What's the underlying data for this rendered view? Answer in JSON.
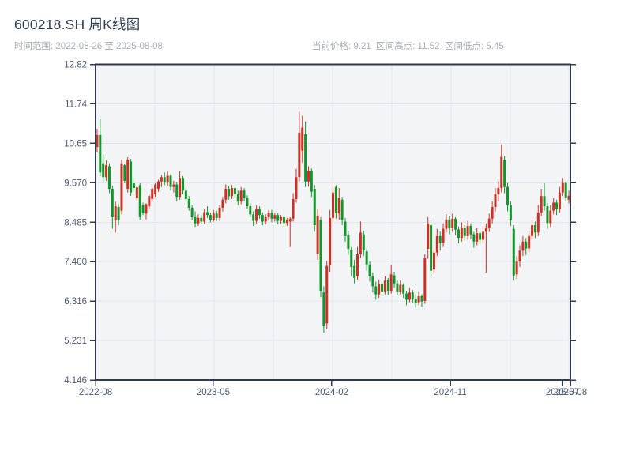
{
  "header": {
    "title": "600218.SH 周K线图",
    "subtitle_left": "时间范围: 2022-08-26 至 2025-08-08",
    "subtitle_right": "当前价格: 9.21  区间高点: 11.52  区间低点: 5.45"
  },
  "chart_data": {
    "type": "candlestick",
    "symbol": "600218.SH",
    "period": "weekly",
    "title": "600218.SH 周K线图",
    "date_start": "2022-08-26",
    "date_end": "2025-08-08",
    "current_price": 9.21,
    "range_high": 11.52,
    "range_low": 5.45,
    "ylim": [
      4.146,
      12.82
    ],
    "grid": true,
    "colors": {
      "up": "#cc3126",
      "down": "#12962a",
      "axis": "#2f3b4d",
      "grid": "#e5e6ea",
      "plot_bg": "#f3f4f6",
      "label": "#4b5870"
    },
    "y_ticks": [
      {
        "value": 12.82,
        "label": "12.82"
      },
      {
        "value": 11.736,
        "label": "11.74"
      },
      {
        "value": 10.651,
        "label": "10.65"
      },
      {
        "value": 9.567,
        "label": "9.570"
      },
      {
        "value": 8.483,
        "label": "8.485"
      },
      {
        "value": 7.398,
        "label": "7.400"
      },
      {
        "value": 6.314,
        "label": "6.316"
      },
      {
        "value": 5.23,
        "label": "5.231"
      },
      {
        "value": 4.146,
        "label": "4.146"
      }
    ],
    "x_ticks": [
      {
        "f": 0.0,
        "label": "2022-08"
      },
      {
        "f": 0.2479,
        "label": "2023-05"
      },
      {
        "f": 0.4975,
        "label": "2024-02"
      },
      {
        "f": 0.7471,
        "label": "2024-11"
      },
      {
        "f": 0.9834,
        "label": "2025-07"
      },
      {
        "f": 1.0,
        "label": "2025-08"
      }
    ],
    "minor_grid": [
      0.1248,
      0.2496,
      0.3744,
      0.4992,
      0.624,
      0.7488,
      0.8736,
      0.9967
    ],
    "ohlc": [
      [
        10.55,
        11.05,
        10.4,
        10.88
      ],
      [
        10.88,
        11.32,
        9.75,
        9.85
      ],
      [
        10.1,
        10.35,
        9.6,
        9.72
      ],
      [
        9.72,
        10.18,
        9.62,
        10.05
      ],
      [
        10.02,
        10.1,
        9.28,
        9.4
      ],
      [
        9.4,
        9.48,
        8.3,
        8.62
      ],
      [
        8.55,
        9.05,
        8.2,
        8.92
      ],
      [
        8.9,
        8.98,
        8.4,
        8.55
      ],
      [
        8.8,
        10.2,
        8.7,
        10.1
      ],
      [
        10.05,
        10.08,
        9.55,
        9.62
      ],
      [
        9.4,
        10.27,
        9.3,
        10.2
      ],
      [
        10.15,
        10.22,
        9.21,
        9.3
      ],
      [
        9.55,
        9.72,
        9.32,
        9.42
      ],
      [
        9.15,
        9.48,
        9.05,
        9.44
      ],
      [
        9.5,
        9.55,
        8.55,
        8.62
      ],
      [
        8.95,
        9.02,
        8.68,
        8.74
      ],
      [
        8.72,
        9.0,
        8.56,
        8.98
      ],
      [
        8.92,
        9.24,
        8.85,
        9.2
      ],
      [
        9.12,
        9.43,
        9.05,
        9.4
      ],
      [
        9.25,
        9.55,
        9.18,
        9.52
      ],
      [
        9.4,
        9.65,
        9.32,
        9.6
      ],
      [
        9.6,
        9.78,
        9.45,
        9.72
      ],
      [
        9.72,
        9.85,
        9.5,
        9.58
      ],
      [
        9.58,
        9.88,
        9.48,
        9.76
      ],
      [
        9.76,
        9.8,
        9.35,
        9.45
      ],
      [
        9.45,
        9.62,
        9.3,
        9.52
      ],
      [
        9.52,
        9.58,
        9.05,
        9.18
      ],
      [
        9.18,
        9.88,
        9.1,
        9.7
      ],
      [
        9.7,
        9.75,
        9.25,
        9.35
      ],
      [
        9.35,
        9.42,
        9.05,
        9.12
      ],
      [
        9.12,
        9.2,
        8.8,
        8.88
      ],
      [
        8.88,
        8.95,
        8.55,
        8.62
      ],
      [
        8.62,
        8.78,
        8.35,
        8.45
      ],
      [
        8.45,
        8.7,
        8.38,
        8.6
      ],
      [
        8.6,
        8.68,
        8.42,
        8.5
      ],
      [
        8.5,
        8.85,
        8.44,
        8.76
      ],
      [
        8.76,
        8.92,
        8.6,
        8.68
      ],
      [
        8.68,
        8.75,
        8.48,
        8.55
      ],
      [
        8.55,
        8.82,
        8.5,
        8.72
      ],
      [
        8.72,
        8.8,
        8.52,
        8.6
      ],
      [
        8.6,
        8.95,
        8.52,
        8.88
      ],
      [
        8.88,
        9.18,
        8.78,
        9.1
      ],
      [
        9.1,
        9.52,
        9.0,
        9.4
      ],
      [
        9.4,
        9.48,
        9.1,
        9.2
      ],
      [
        9.2,
        9.5,
        9.12,
        9.42
      ],
      [
        9.42,
        9.48,
        9.15,
        9.25
      ],
      [
        9.25,
        9.35,
        8.95,
        9.05
      ],
      [
        9.05,
        9.45,
        8.98,
        9.35
      ],
      [
        9.35,
        9.42,
        9.05,
        9.15
      ],
      [
        9.15,
        9.22,
        8.85,
        8.92
      ],
      [
        8.92,
        9.0,
        8.62,
        8.7
      ],
      [
        8.7,
        8.78,
        8.38,
        8.52
      ],
      [
        8.52,
        8.95,
        8.45,
        8.85
      ],
      [
        8.85,
        8.92,
        8.58,
        8.68
      ],
      [
        8.68,
        8.75,
        8.4,
        8.5
      ],
      [
        8.5,
        8.7,
        8.42,
        8.62
      ],
      [
        8.62,
        8.82,
        8.52,
        8.75
      ],
      [
        8.75,
        8.82,
        8.48,
        8.58
      ],
      [
        8.58,
        8.75,
        8.5,
        8.68
      ],
      [
        8.68,
        8.74,
        8.42,
        8.52
      ],
      [
        8.52,
        8.68,
        8.44,
        8.62
      ],
      [
        8.62,
        8.66,
        8.36,
        8.46
      ],
      [
        8.46,
        8.6,
        8.38,
        8.55
      ],
      [
        8.5,
        8.62,
        7.8,
        8.58
      ],
      [
        8.58,
        9.28,
        8.5,
        9.12
      ],
      [
        9.12,
        9.95,
        9.02,
        9.72
      ],
      [
        9.72,
        11.52,
        9.6,
        10.94
      ],
      [
        10.45,
        11.41,
        10.12,
        11.08
      ],
      [
        10.9,
        11.25,
        9.45,
        9.6
      ],
      [
        9.6,
        10.02,
        9.46,
        9.9
      ],
      [
        9.9,
        9.96,
        9.18,
        9.32
      ],
      [
        9.4,
        9.5,
        8.22,
        8.4
      ],
      [
        7.62,
        8.85,
        7.45,
        8.66
      ],
      [
        8.55,
        8.62,
        6.42,
        6.6
      ],
      [
        6.55,
        6.72,
        5.45,
        5.62
      ],
      [
        5.7,
        7.42,
        5.55,
        7.28
      ],
      [
        7.3,
        8.82,
        7.12,
        8.6
      ],
      [
        8.6,
        9.52,
        8.42,
        9.3
      ],
      [
        9.45,
        9.5,
        8.58,
        8.75
      ],
      [
        8.72,
        9.42,
        8.55,
        9.15
      ],
      [
        9.1,
        9.18,
        8.4,
        8.55
      ],
      [
        8.5,
        8.6,
        7.95,
        8.1
      ],
      [
        8.12,
        8.25,
        7.58,
        7.75
      ],
      [
        7.72,
        7.8,
        7.0,
        7.25
      ],
      [
        7.28,
        7.45,
        6.8,
        6.95
      ],
      [
        7.0,
        7.8,
        6.9,
        7.6
      ],
      [
        7.6,
        8.5,
        7.5,
        8.2
      ],
      [
        8.15,
        8.25,
        7.55,
        7.7
      ],
      [
        7.68,
        7.76,
        7.15,
        7.32
      ],
      [
        7.32,
        7.4,
        6.85,
        7.0
      ],
      [
        7.0,
        7.1,
        6.55,
        6.72
      ],
      [
        6.72,
        6.85,
        6.35,
        6.5
      ],
      [
        6.5,
        6.9,
        6.4,
        6.78
      ],
      [
        6.78,
        6.85,
        6.45,
        6.58
      ],
      [
        6.58,
        7.0,
        6.5,
        6.88
      ],
      [
        6.88,
        6.95,
        6.48,
        6.6
      ],
      [
        6.6,
        7.32,
        6.52,
        7.05
      ],
      [
        7.02,
        7.12,
        6.68,
        6.8
      ],
      [
        6.8,
        6.88,
        6.48,
        6.58
      ],
      [
        6.58,
        6.88,
        6.5,
        6.76
      ],
      [
        6.76,
        6.8,
        6.4,
        6.52
      ],
      [
        6.52,
        6.6,
        6.2,
        6.35
      ],
      [
        6.35,
        6.68,
        6.28,
        6.55
      ],
      [
        6.55,
        6.62,
        6.26,
        6.38
      ],
      [
        6.38,
        6.5,
        6.14,
        6.26
      ],
      [
        6.28,
        6.58,
        6.2,
        6.45
      ],
      [
        6.45,
        6.5,
        6.16,
        6.3
      ],
      [
        6.32,
        7.6,
        6.24,
        7.5
      ],
      [
        7.75,
        8.62,
        7.48,
        8.45
      ],
      [
        8.4,
        8.52,
        6.95,
        7.15
      ],
      [
        7.18,
        7.82,
        7.05,
        7.65
      ],
      [
        7.65,
        8.3,
        7.55,
        8.1
      ],
      [
        8.1,
        8.22,
        7.7,
        7.92
      ],
      [
        7.92,
        8.45,
        7.8,
        8.3
      ],
      [
        8.3,
        8.7,
        8.2,
        8.56
      ],
      [
        8.56,
        8.65,
        8.15,
        8.32
      ],
      [
        8.32,
        8.72,
        8.22,
        8.58
      ],
      [
        8.58,
        8.62,
        8.12,
        8.28
      ],
      [
        8.28,
        8.36,
        7.9,
        8.05
      ],
      [
        8.05,
        8.48,
        7.95,
        8.32
      ],
      [
        8.32,
        8.4,
        7.98,
        8.1
      ],
      [
        8.1,
        8.52,
        8.0,
        8.38
      ],
      [
        8.38,
        8.45,
        8.02,
        8.15
      ],
      [
        8.15,
        8.22,
        7.78,
        7.95
      ],
      [
        7.95,
        8.32,
        7.85,
        8.18
      ],
      [
        8.18,
        8.25,
        7.88,
        8.0
      ],
      [
        8.0,
        8.38,
        7.9,
        8.22
      ],
      [
        8.22,
        8.45,
        7.1,
        8.32
      ],
      [
        8.32,
        8.72,
        8.22,
        8.58
      ],
      [
        8.58,
        9.05,
        8.45,
        8.9
      ],
      [
        8.9,
        9.42,
        8.78,
        9.25
      ],
      [
        9.25,
        9.6,
        9.05,
        9.42
      ],
      [
        9.42,
        10.62,
        9.3,
        10.28
      ],
      [
        10.2,
        10.3,
        9.28,
        9.45
      ],
      [
        9.45,
        9.56,
        8.78,
        8.95
      ],
      [
        8.95,
        9.05,
        8.38,
        8.55
      ],
      [
        8.3,
        8.4,
        6.88,
        7.02
      ],
      [
        7.05,
        7.55,
        6.92,
        7.4
      ],
      [
        7.4,
        7.85,
        7.25,
        7.7
      ],
      [
        7.7,
        8.1,
        7.55,
        7.95
      ],
      [
        7.95,
        8.05,
        7.58,
        7.76
      ],
      [
        7.76,
        8.25,
        7.65,
        8.1
      ],
      [
        8.1,
        8.55,
        8.0,
        8.4
      ],
      [
        8.4,
        8.5,
        8.05,
        8.2
      ],
      [
        8.2,
        8.95,
        8.1,
        8.75
      ],
      [
        8.75,
        9.4,
        8.65,
        9.2
      ],
      [
        9.2,
        9.55,
        8.8,
        8.92
      ],
      [
        8.92,
        9.0,
        8.3,
        8.46
      ],
      [
        8.46,
        8.95,
        8.35,
        8.8
      ],
      [
        8.8,
        9.15,
        8.7,
        9.02
      ],
      [
        9.02,
        9.1,
        8.68,
        8.85
      ],
      [
        8.85,
        9.45,
        8.75,
        9.3
      ],
      [
        9.3,
        9.7,
        9.2,
        9.56
      ],
      [
        9.56,
        9.6,
        9.05,
        9.16
      ],
      [
        9.1,
        9.35,
        9.0,
        9.21
      ]
    ]
  }
}
